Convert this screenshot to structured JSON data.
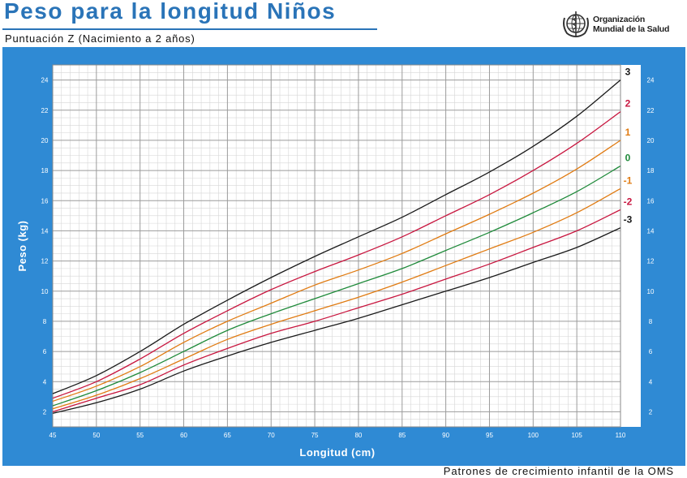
{
  "page": {
    "title": "Peso para la longitud Niños",
    "subtitle": "Puntuación Z (Nacimiento a 2 años)",
    "org_line1": "Organización",
    "org_line2": "Mundial de la Salud",
    "footer": "Patrones de crecimiento infantil de la OMS",
    "logo_icon": "who-emblem-icon"
  },
  "colors": {
    "panel": "#2f8ad4",
    "title": "#2a74b8",
    "grid_major": "#9b9b9b",
    "grid_minor": "#d6d6d6",
    "line_3": "#1a1a1a",
    "line_2": "#c8163f",
    "line_1": "#e07b12",
    "line_0": "#1f8a3a"
  },
  "chart_data": {
    "type": "line",
    "xlabel": "Longitud (cm)",
    "ylabel": "Peso (kg)",
    "xlim": [
      45,
      110
    ],
    "ylim": [
      1,
      25
    ],
    "x_ticks": [
      45,
      50,
      55,
      60,
      65,
      70,
      75,
      80,
      85,
      90,
      95,
      100,
      105,
      110
    ],
    "y_ticks": [
      2,
      4,
      6,
      8,
      10,
      12,
      14,
      16,
      18,
      20,
      22,
      24
    ],
    "x_minor_step": 1,
    "y_minor_step": 0.5,
    "grid": true,
    "x": [
      45,
      50,
      55,
      60,
      65,
      70,
      75,
      80,
      85,
      90,
      95,
      100,
      105,
      110
    ],
    "series": [
      {
        "name": "3",
        "color": "#1a1a1a",
        "values": [
          3.2,
          4.4,
          6.0,
          7.8,
          9.4,
          10.9,
          12.3,
          13.6,
          14.9,
          16.4,
          17.9,
          19.6,
          21.6,
          24.0
        ]
      },
      {
        "name": "2",
        "color": "#c8163f",
        "values": [
          2.9,
          4.0,
          5.5,
          7.2,
          8.7,
          10.1,
          11.3,
          12.4,
          13.6,
          15.0,
          16.4,
          18.0,
          19.8,
          21.9
        ]
      },
      {
        "name": "1",
        "color": "#e07b12",
        "values": [
          2.7,
          3.7,
          5.0,
          6.6,
          8.0,
          9.2,
          10.4,
          11.4,
          12.5,
          13.8,
          15.1,
          16.5,
          18.1,
          20.0
        ]
      },
      {
        "name": "0",
        "color": "#1f8a3a",
        "values": [
          2.4,
          3.4,
          4.6,
          6.0,
          7.4,
          8.5,
          9.5,
          10.5,
          11.5,
          12.7,
          13.9,
          15.2,
          16.6,
          18.3
        ]
      },
      {
        "name": "-1",
        "color": "#e07b12",
        "values": [
          2.2,
          3.1,
          4.2,
          5.5,
          6.8,
          7.8,
          8.7,
          9.6,
          10.6,
          11.7,
          12.8,
          13.9,
          15.2,
          16.8
        ]
      },
      {
        "name": "-2",
        "color": "#c8163f",
        "values": [
          2.0,
          2.9,
          3.8,
          5.1,
          6.2,
          7.2,
          8.0,
          8.9,
          9.8,
          10.8,
          11.8,
          12.9,
          14.0,
          15.4
        ]
      },
      {
        "name": "-3",
        "color": "#1a1a1a",
        "values": [
          1.9,
          2.6,
          3.5,
          4.7,
          5.7,
          6.6,
          7.4,
          8.2,
          9.1,
          10.0,
          10.9,
          11.9,
          12.9,
          14.2
        ]
      }
    ]
  }
}
